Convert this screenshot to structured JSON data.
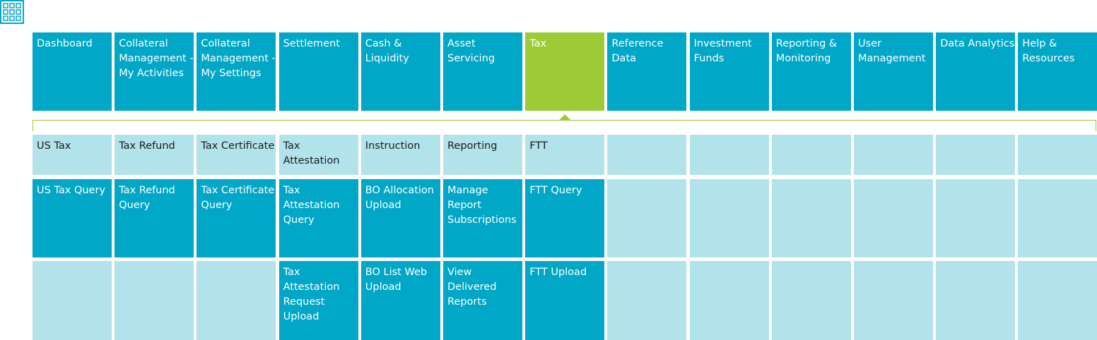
{
  "tabs": [
    "Dashboard",
    "Collateral Management - My Activities",
    "Collateral Management - My Settings",
    "Settlement",
    "Cash & Liquidity",
    "Asset Servicing",
    "Tax",
    "Reference Data",
    "Investment Funds",
    "Reporting & Monitoring",
    "User Management",
    "Data Analytics",
    "Help & Resources"
  ],
  "submenu": [
    {
      "title": "US Tax",
      "items": [
        "US Tax Query"
      ]
    },
    {
      "title": "Tax Refund",
      "items": [
        "Tax Refund Query"
      ]
    },
    {
      "title": "Tax Certificate",
      "items": [
        "Tax Certificate Query"
      ]
    },
    {
      "title": "Tax Attestation",
      "items": [
        "Tax Attestation Query",
        "Tax Attestation Request Upload"
      ]
    },
    {
      "title": "Instruction",
      "items": [
        "BO Allocation Upload",
        "BO List Web Upload"
      ]
    },
    {
      "title": "Reporting",
      "items": [
        "Manage Report Subscriptions",
        "View Delivered Reports"
      ]
    },
    {
      "title": "FTT",
      "items": [
        "FTT Query",
        "FTT Upload"
      ]
    }
  ]
}
